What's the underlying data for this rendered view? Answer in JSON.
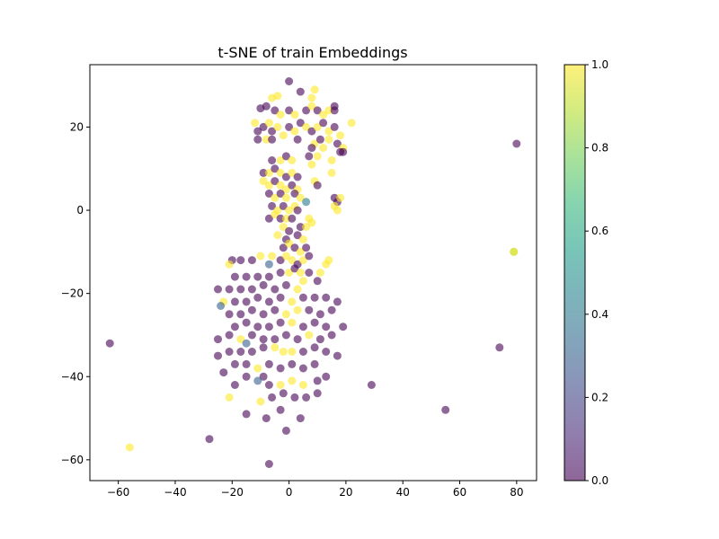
{
  "chart_data": {
    "type": "scatter",
    "title": "t-SNE of train Embeddings",
    "xlabel": "",
    "ylabel": "",
    "xlim": [
      -70,
      87
    ],
    "ylim": [
      -65,
      35
    ],
    "xticks": [
      -60,
      -40,
      -20,
      0,
      20,
      40,
      60,
      80
    ],
    "yticks": [
      -60,
      -40,
      -20,
      0,
      20
    ],
    "xtick_labels": [
      "−60",
      "−40",
      "−20",
      "0",
      "20",
      "40",
      "60",
      "80"
    ],
    "ytick_labels": [
      "−60",
      "−40",
      "−20",
      "0",
      "20"
    ],
    "grid": false,
    "colormap": "viridis",
    "alpha": 0.6,
    "colorbar": {
      "range": [
        0,
        1
      ],
      "ticks": [
        0.0,
        0.2,
        0.4,
        0.6,
        0.8,
        1.0
      ],
      "tick_labels": [
        "0.0",
        "0.2",
        "0.4",
        "0.6",
        "0.8",
        "1.0"
      ],
      "colors": [
        "#440154",
        "#482878",
        "#3e4989",
        "#31688e",
        "#26828e",
        "#1f9e89",
        "#35b779",
        "#6ece58",
        "#b5de2b",
        "#fde725"
      ]
    },
    "points": [
      {
        "x": 0,
        "y": 31,
        "c": 0
      },
      {
        "x": 4,
        "y": 28.5,
        "c": 0
      },
      {
        "x": -4,
        "y": 27.5,
        "c": 1
      },
      {
        "x": -6,
        "y": 27,
        "c": 1
      },
      {
        "x": 9,
        "y": 29,
        "c": 1
      },
      {
        "x": 8,
        "y": 27,
        "c": 1
      },
      {
        "x": -10,
        "y": 24.5,
        "c": 0
      },
      {
        "x": -8,
        "y": 25,
        "c": 0
      },
      {
        "x": -5,
        "y": 24,
        "c": 0
      },
      {
        "x": -3,
        "y": 23,
        "c": 1
      },
      {
        "x": 0,
        "y": 24,
        "c": 0
      },
      {
        "x": 2,
        "y": 23,
        "c": 1
      },
      {
        "x": 6,
        "y": 24,
        "c": 0
      },
      {
        "x": 8,
        "y": 25,
        "c": 1
      },
      {
        "x": 10,
        "y": 24,
        "c": 0
      },
      {
        "x": 12,
        "y": 23,
        "c": 1
      },
      {
        "x": 14,
        "y": 24,
        "c": 1
      },
      {
        "x": 16,
        "y": 25,
        "c": 0
      },
      {
        "x": 16,
        "y": 24,
        "c": 0
      },
      {
        "x": -12,
        "y": 21,
        "c": 1
      },
      {
        "x": -11,
        "y": 19,
        "c": 0
      },
      {
        "x": -9,
        "y": 20,
        "c": 0
      },
      {
        "x": -7,
        "y": 21,
        "c": 1
      },
      {
        "x": -6,
        "y": 19,
        "c": 0
      },
      {
        "x": -4,
        "y": 20,
        "c": 1
      },
      {
        "x": -2,
        "y": 18,
        "c": 1
      },
      {
        "x": 0,
        "y": 20,
        "c": 0
      },
      {
        "x": 2,
        "y": 19,
        "c": 1
      },
      {
        "x": 4,
        "y": 21,
        "c": 0
      },
      {
        "x": 6,
        "y": 20,
        "c": 1
      },
      {
        "x": 8,
        "y": 19,
        "c": 0
      },
      {
        "x": 10,
        "y": 20,
        "c": 1
      },
      {
        "x": 12,
        "y": 21,
        "c": 0
      },
      {
        "x": 14,
        "y": 19,
        "c": 1
      },
      {
        "x": 16,
        "y": 20,
        "c": 0
      },
      {
        "x": 18,
        "y": 18,
        "c": 1
      },
      {
        "x": 22,
        "y": 21,
        "c": 1
      },
      {
        "x": -11,
        "y": 17,
        "c": 0
      },
      {
        "x": -8,
        "y": 17,
        "c": 1
      },
      {
        "x": -6,
        "y": 17,
        "c": 0
      },
      {
        "x": 3,
        "y": 17,
        "c": 0
      },
      {
        "x": 9,
        "y": 16,
        "c": 1
      },
      {
        "x": 11,
        "y": 17,
        "c": 0
      },
      {
        "x": 14,
        "y": 17,
        "c": 1
      },
      {
        "x": 17,
        "y": 16,
        "c": 0
      },
      {
        "x": 19,
        "y": 15,
        "c": 1
      },
      {
        "x": 8,
        "y": 15,
        "c": 0
      },
      {
        "x": 12,
        "y": 15,
        "c": 1
      },
      {
        "x": 18,
        "y": 14,
        "c": 0
      },
      {
        "x": 19,
        "y": 14,
        "c": 0
      },
      {
        "x": 15,
        "y": 12,
        "c": 1
      },
      {
        "x": 7,
        "y": 13,
        "c": 0
      },
      {
        "x": 10,
        "y": 13,
        "c": 1
      },
      {
        "x": -6,
        "y": 12,
        "c": 0
      },
      {
        "x": -3,
        "y": 12,
        "c": 1
      },
      {
        "x": -1,
        "y": 13,
        "c": 0
      },
      {
        "x": 1,
        "y": 12,
        "c": 1
      },
      {
        "x": 8,
        "y": 11,
        "c": 1
      },
      {
        "x": 15,
        "y": 9,
        "c": 1
      },
      {
        "x": -9,
        "y": 9,
        "c": 0
      },
      {
        "x": -7,
        "y": 9,
        "c": 1
      },
      {
        "x": -5,
        "y": 10,
        "c": 0
      },
      {
        "x": -3,
        "y": 9,
        "c": 1
      },
      {
        "x": -1,
        "y": 8,
        "c": 0
      },
      {
        "x": 1,
        "y": 9,
        "c": 1
      },
      {
        "x": 3,
        "y": 8,
        "c": 0
      },
      {
        "x": -9,
        "y": 7,
        "c": 1
      },
      {
        "x": -7,
        "y": 6,
        "c": 1
      },
      {
        "x": -5,
        "y": 7,
        "c": 0
      },
      {
        "x": -3,
        "y": 6,
        "c": 1
      },
      {
        "x": -1,
        "y": 5,
        "c": 1
      },
      {
        "x": 1,
        "y": 6,
        "c": 0
      },
      {
        "x": 3,
        "y": 5,
        "c": 1
      },
      {
        "x": 9,
        "y": 7,
        "c": 1
      },
      {
        "x": 10,
        "y": 6,
        "c": 0
      },
      {
        "x": -7,
        "y": 4,
        "c": 0
      },
      {
        "x": -5,
        "y": 3,
        "c": 1
      },
      {
        "x": -3,
        "y": 4,
        "c": 0
      },
      {
        "x": -1,
        "y": 3,
        "c": 1
      },
      {
        "x": 2,
        "y": 4,
        "c": 0
      },
      {
        "x": 4,
        "y": 3,
        "c": 1
      },
      {
        "x": 16,
        "y": 3,
        "c": 0
      },
      {
        "x": 17,
        "y": 2,
        "c": 0
      },
      {
        "x": 16,
        "y": 1,
        "c": 1
      },
      {
        "x": 17,
        "y": 0,
        "c": 1
      },
      {
        "x": 18,
        "y": 3,
        "c": 1
      },
      {
        "x": 6,
        "y": 2,
        "c": 0.4
      },
      {
        "x": -6,
        "y": 1,
        "c": 0
      },
      {
        "x": -4,
        "y": 0,
        "c": 1
      },
      {
        "x": -2,
        "y": 1,
        "c": 0
      },
      {
        "x": 0,
        "y": 0,
        "c": 1
      },
      {
        "x": 2,
        "y": 1,
        "c": 1
      },
      {
        "x": 3,
        "y": 0,
        "c": 0
      },
      {
        "x": -7,
        "y": -2,
        "c": 0
      },
      {
        "x": -5,
        "y": -1,
        "c": 1
      },
      {
        "x": -3,
        "y": -2,
        "c": 0
      },
      {
        "x": -1,
        "y": -2,
        "c": 1
      },
      {
        "x": 1,
        "y": -2,
        "c": 0
      },
      {
        "x": 7,
        "y": -2,
        "c": 1
      },
      {
        "x": 8,
        "y": -3,
        "c": 1
      },
      {
        "x": -2,
        "y": -4,
        "c": 1
      },
      {
        "x": 0,
        "y": -5,
        "c": 0
      },
      {
        "x": 4,
        "y": -4,
        "c": 0
      },
      {
        "x": 6,
        "y": -4,
        "c": 1
      },
      {
        "x": -4,
        "y": -6,
        "c": 1
      },
      {
        "x": -1,
        "y": -7,
        "c": 0
      },
      {
        "x": 3,
        "y": -6,
        "c": 0
      },
      {
        "x": 5,
        "y": -7,
        "c": 1
      },
      {
        "x": -2,
        "y": -9,
        "c": 0
      },
      {
        "x": 0,
        "y": -8,
        "c": 1
      },
      {
        "x": 2,
        "y": -9,
        "c": 0
      },
      {
        "x": 4,
        "y": -10,
        "c": 1
      },
      {
        "x": 6,
        "y": -9,
        "c": 0
      },
      {
        "x": -6,
        "y": -11,
        "c": 1
      },
      {
        "x": -3,
        "y": -12,
        "c": 0
      },
      {
        "x": -1,
        "y": -11,
        "c": 1
      },
      {
        "x": 1,
        "y": -12,
        "c": 1
      },
      {
        "x": 3,
        "y": -13,
        "c": 0
      },
      {
        "x": 5,
        "y": -12,
        "c": 1
      },
      {
        "x": 7,
        "y": -11,
        "c": 0
      },
      {
        "x": -10,
        "y": -11,
        "c": 1
      },
      {
        "x": -20,
        "y": -12,
        "c": 0
      },
      {
        "x": -21,
        "y": -13,
        "c": 1
      },
      {
        "x": -17,
        "y": -12,
        "c": 0
      },
      {
        "x": -13,
        "y": -12,
        "c": 0
      },
      {
        "x": 14,
        "y": -12,
        "c": 1
      },
      {
        "x": 13,
        "y": -13,
        "c": 1
      },
      {
        "x": -7,
        "y": -13,
        "c": 0.3
      },
      {
        "x": 0,
        "y": -15,
        "c": 1
      },
      {
        "x": 2,
        "y": -14,
        "c": 0
      },
      {
        "x": 4,
        "y": -15,
        "c": 1
      },
      {
        "x": 11,
        "y": -15,
        "c": 1
      },
      {
        "x": -19,
        "y": -16,
        "c": 0
      },
      {
        "x": -15,
        "y": -16,
        "c": 0
      },
      {
        "x": -11,
        "y": -16,
        "c": 0
      },
      {
        "x": -7,
        "y": -16,
        "c": 0
      },
      {
        "x": -3,
        "y": -15,
        "c": 0
      },
      {
        "x": 7,
        "y": -15,
        "c": 0
      },
      {
        "x": -21,
        "y": -19,
        "c": 0
      },
      {
        "x": -17,
        "y": -19,
        "c": 0
      },
      {
        "x": -13,
        "y": -19,
        "c": 0
      },
      {
        "x": -9,
        "y": -18,
        "c": 0
      },
      {
        "x": -5,
        "y": -19,
        "c": 0
      },
      {
        "x": -1,
        "y": -18,
        "c": 0
      },
      {
        "x": 3,
        "y": -19,
        "c": 1
      },
      {
        "x": 5,
        "y": -17,
        "c": 1
      },
      {
        "x": 10,
        "y": -17,
        "c": 0
      },
      {
        "x": -23,
        "y": -22,
        "c": 1
      },
      {
        "x": -19,
        "y": -22,
        "c": 0
      },
      {
        "x": -15,
        "y": -22,
        "c": 0
      },
      {
        "x": -11,
        "y": -21,
        "c": 0
      },
      {
        "x": -7,
        "y": -22,
        "c": 0
      },
      {
        "x": -3,
        "y": -21,
        "c": 0
      },
      {
        "x": 1,
        "y": -22,
        "c": 1
      },
      {
        "x": 5,
        "y": -21,
        "c": 0
      },
      {
        "x": 9,
        "y": -21,
        "c": 0
      },
      {
        "x": 13,
        "y": -21,
        "c": 0
      },
      {
        "x": 17,
        "y": -22,
        "c": 0
      },
      {
        "x": -25,
        "y": -19,
        "c": 0
      },
      {
        "x": -24,
        "y": -23,
        "c": 0.3
      },
      {
        "x": -21,
        "y": -25,
        "c": 0
      },
      {
        "x": -17,
        "y": -25,
        "c": 0
      },
      {
        "x": -13,
        "y": -24,
        "c": 0
      },
      {
        "x": -9,
        "y": -25,
        "c": 0
      },
      {
        "x": -5,
        "y": -24,
        "c": 0
      },
      {
        "x": -1,
        "y": -25,
        "c": 1
      },
      {
        "x": 3,
        "y": -24,
        "c": 1
      },
      {
        "x": 7,
        "y": -24,
        "c": 0
      },
      {
        "x": 11,
        "y": -25,
        "c": 0
      },
      {
        "x": 15,
        "y": -24,
        "c": 0
      },
      {
        "x": -19,
        "y": -28,
        "c": 0
      },
      {
        "x": -15,
        "y": -27,
        "c": 0
      },
      {
        "x": -11,
        "y": -28,
        "c": 0
      },
      {
        "x": -7,
        "y": -28,
        "c": 0
      },
      {
        "x": -3,
        "y": -27,
        "c": 0
      },
      {
        "x": 1,
        "y": -27,
        "c": 1
      },
      {
        "x": 5,
        "y": -28,
        "c": 0
      },
      {
        "x": 9,
        "y": -27,
        "c": 0
      },
      {
        "x": 13,
        "y": -28,
        "c": 0
      },
      {
        "x": 19,
        "y": -28,
        "c": 0
      },
      {
        "x": -25,
        "y": -31,
        "c": 0
      },
      {
        "x": -21,
        "y": -30,
        "c": 0
      },
      {
        "x": -17,
        "y": -31,
        "c": 1
      },
      {
        "x": -13,
        "y": -30,
        "c": 0
      },
      {
        "x": -9,
        "y": -31,
        "c": 0
      },
      {
        "x": -5,
        "y": -31,
        "c": 0
      },
      {
        "x": -1,
        "y": -30,
        "c": 0
      },
      {
        "x": 3,
        "y": -31,
        "c": 0
      },
      {
        "x": 7,
        "y": -30,
        "c": 1
      },
      {
        "x": 11,
        "y": -31,
        "c": 0
      },
      {
        "x": 15,
        "y": -30,
        "c": 0
      },
      {
        "x": -15,
        "y": -32,
        "c": 0.3
      },
      {
        "x": -21,
        "y": -34,
        "c": 0
      },
      {
        "x": -17,
        "y": -34,
        "c": 0
      },
      {
        "x": -13,
        "y": -34,
        "c": 0
      },
      {
        "x": -9,
        "y": -33,
        "c": 0
      },
      {
        "x": -5,
        "y": -33,
        "c": 1
      },
      {
        "x": -2,
        "y": -34,
        "c": 1
      },
      {
        "x": 1,
        "y": -34,
        "c": 1
      },
      {
        "x": 5,
        "y": -34,
        "c": 0
      },
      {
        "x": 9,
        "y": -33,
        "c": 0
      },
      {
        "x": 13,
        "y": -34,
        "c": 0
      },
      {
        "x": -25,
        "y": -35,
        "c": 0
      },
      {
        "x": 17,
        "y": -35,
        "c": 0
      },
      {
        "x": -19,
        "y": -37,
        "c": 0
      },
      {
        "x": -15,
        "y": -37,
        "c": 0
      },
      {
        "x": -11,
        "y": -38,
        "c": 1
      },
      {
        "x": -7,
        "y": -37,
        "c": 0
      },
      {
        "x": -3,
        "y": -38,
        "c": 0
      },
      {
        "x": 1,
        "y": -37,
        "c": 0
      },
      {
        "x": 5,
        "y": -38,
        "c": 0
      },
      {
        "x": 9,
        "y": -37,
        "c": 0
      },
      {
        "x": -23,
        "y": -39,
        "c": 0
      },
      {
        "x": -15,
        "y": -40,
        "c": 0
      },
      {
        "x": -9,
        "y": -40,
        "c": 0
      },
      {
        "x": 13,
        "y": -40,
        "c": 0
      },
      {
        "x": -19,
        "y": -42,
        "c": 0
      },
      {
        "x": -11,
        "y": -41,
        "c": 0.3
      },
      {
        "x": -7,
        "y": -42,
        "c": 0
      },
      {
        "x": -3,
        "y": -42,
        "c": 1
      },
      {
        "x": 1,
        "y": -41,
        "c": 1
      },
      {
        "x": 5,
        "y": -42,
        "c": 1
      },
      {
        "x": 10,
        "y": -41,
        "c": 0
      },
      {
        "x": -21,
        "y": -45,
        "c": 1
      },
      {
        "x": -10,
        "y": -46,
        "c": 1
      },
      {
        "x": -6,
        "y": -45,
        "c": 0
      },
      {
        "x": -2,
        "y": -44,
        "c": 0
      },
      {
        "x": 2,
        "y": -45,
        "c": 0
      },
      {
        "x": 6,
        "y": -45,
        "c": 0
      },
      {
        "x": 10,
        "y": -44,
        "c": 0
      },
      {
        "x": -15,
        "y": -49,
        "c": 0
      },
      {
        "x": -3,
        "y": -48,
        "c": 0
      },
      {
        "x": -8,
        "y": -50,
        "c": 0
      },
      {
        "x": 4,
        "y": -50,
        "c": 0
      },
      {
        "x": -1,
        "y": -53,
        "c": 0
      },
      {
        "x": -7,
        "y": -61,
        "c": 0
      },
      {
        "x": -28,
        "y": -55,
        "c": 0
      },
      {
        "x": -56,
        "y": -57,
        "c": 1
      },
      {
        "x": -63,
        "y": -32,
        "c": 0
      },
      {
        "x": 29,
        "y": -42,
        "c": 0
      },
      {
        "x": 55,
        "y": -48,
        "c": 0
      },
      {
        "x": 74,
        "y": -33,
        "c": 0
      },
      {
        "x": 80,
        "y": 16,
        "c": 0
      },
      {
        "x": 79,
        "y": -10,
        "c": 0.8
      },
      {
        "x": 79,
        "y": -10,
        "c": 1
      }
    ]
  }
}
